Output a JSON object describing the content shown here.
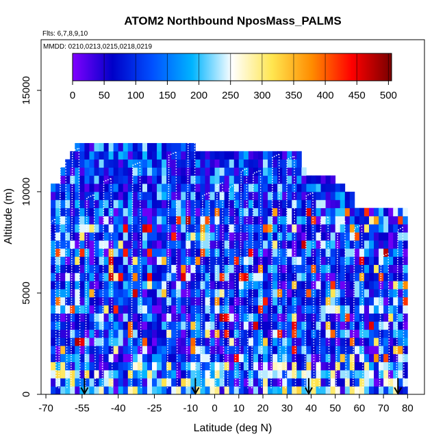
{
  "chart_data": {
    "type": "heatmap",
    "title": "ATOM2 Northbound NposMass_PALMS",
    "subtitle_flights": "Flts: 6,7,8,9,10",
    "subtitle_dates": "MMDD: 0210,0213,0215,0218,0219",
    "xlabel": "Latitude (deg N)",
    "ylabel": "Altitude (m)",
    "xlim": [
      -72,
      87
    ],
    "ylim": [
      0,
      17500
    ],
    "x_ticks": [
      -70,
      -55,
      -40,
      -25,
      -10,
      0,
      10,
      20,
      30,
      40,
      50,
      60,
      70,
      80
    ],
    "x_tick_labels": [
      "-70",
      "-55",
      "-40",
      "-25",
      "-10",
      "0",
      "10",
      "20",
      "30",
      "40",
      "50",
      "60",
      "70",
      "80"
    ],
    "y_ticks": [
      0,
      5000,
      10000,
      15000
    ],
    "y_tick_labels": [
      "0",
      "5000",
      "10000",
      "15000"
    ],
    "colorbar": {
      "min": 0,
      "max": 505,
      "ticks": [
        0,
        50,
        100,
        150,
        200,
        250,
        300,
        350,
        400,
        450,
        500
      ],
      "tick_labels": [
        "0",
        "50",
        "100",
        "150",
        "200",
        "250",
        "300",
        "350",
        "400",
        "450",
        "500"
      ],
      "colors": [
        "#8000ff",
        "#0000c8",
        "#0050ff",
        "#00b4ff",
        "#ffffff",
        "#ffe650",
        "#ff8c00",
        "#ff0000",
        "#780000"
      ]
    },
    "colorbar_legend_placement": "top-inside",
    "grid": false,
    "column_bounds": [
      -68,
      -66,
      -64,
      -62,
      -60,
      -58,
      -56,
      -54,
      -52,
      -50,
      -48,
      -46,
      -44,
      -42,
      -40,
      -38,
      -36,
      -34,
      -32,
      -30,
      -28,
      -26,
      -24,
      -22,
      -20,
      -18,
      -16,
      -14,
      -12,
      -10,
      -8,
      -6,
      -4,
      -2,
      0,
      2,
      4,
      6,
      8,
      10,
      12,
      14,
      16,
      18,
      20,
      22,
      24,
      26,
      28,
      30,
      32,
      34,
      36,
      38,
      40,
      42,
      44,
      46,
      48,
      50,
      52,
      54,
      56,
      58,
      60,
      62,
      64,
      66,
      68,
      70,
      72,
      74,
      76,
      78,
      80
    ],
    "column_top_altitudes": [
      10400,
      10400,
      11200,
      11600,
      12000,
      12400,
      12400,
      12400,
      12400,
      12400,
      12400,
      12400,
      12400,
      12400,
      12400,
      12400,
      12400,
      12400,
      12400,
      12400,
      12400,
      12400,
      12400,
      12400,
      12400,
      12400,
      12400,
      12400,
      12400,
      12400,
      12000,
      12000,
      12000,
      12000,
      12000,
      12000,
      12000,
      12000,
      12000,
      12000,
      12000,
      12000,
      12000,
      12000,
      12000,
      12000,
      12000,
      12000,
      12000,
      12000,
      12000,
      12000,
      11200,
      10800,
      10800,
      10800,
      10800,
      10800,
      10800,
      10400,
      10400,
      10000,
      10000,
      9200,
      9200,
      9200,
      9200,
      9200,
      9200,
      9200,
      9200,
      9200,
      9200,
      9200
    ],
    "altitude_band_height": 400,
    "flight_track_peaks": [
      {
        "lat": -68,
        "alt": 8500
      },
      {
        "lat": -64,
        "alt": 11300
      },
      {
        "lat": -59,
        "alt": 12000
      },
      {
        "lat": -53,
        "alt": 9700
      },
      {
        "lat": -46,
        "alt": 10500
      },
      {
        "lat": -34,
        "alt": 11300
      },
      {
        "lat": -19,
        "alt": 11800
      },
      {
        "lat": -11,
        "alt": 12800
      },
      {
        "lat": -5,
        "alt": 9800
      },
      {
        "lat": 1,
        "alt": 10300
      },
      {
        "lat": 6,
        "alt": 10200
      },
      {
        "lat": 11,
        "alt": 11000
      },
      {
        "lat": 16,
        "alt": 10900
      },
      {
        "lat": 24,
        "alt": 11700
      },
      {
        "lat": 30,
        "alt": 11600
      },
      {
        "lat": 38,
        "alt": 9800
      },
      {
        "lat": 44,
        "alt": 8600
      },
      {
        "lat": 51,
        "alt": 8400
      },
      {
        "lat": 58,
        "alt": 8200
      },
      {
        "lat": 69,
        "alt": 6800
      },
      {
        "lat": 76,
        "alt": 8100
      }
    ],
    "arrow_latitudes": [
      -54,
      -8,
      39,
      76
    ]
  }
}
